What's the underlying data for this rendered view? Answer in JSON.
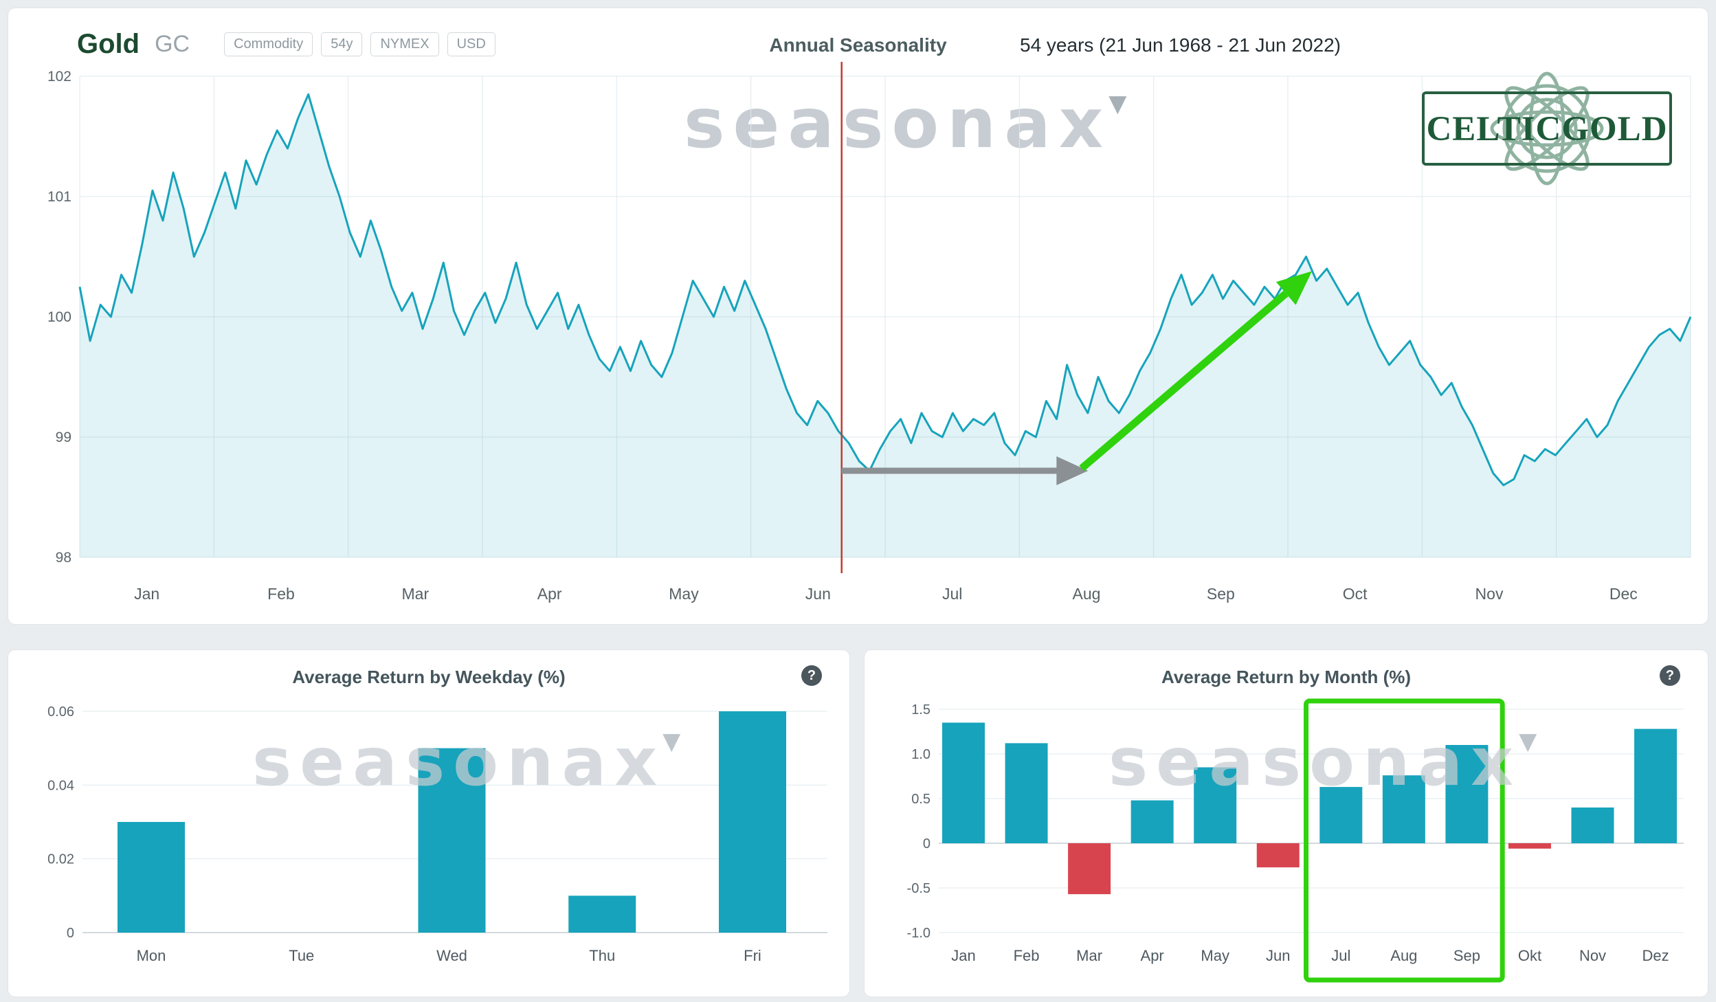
{
  "header": {
    "title": "Gold",
    "symbol": "GC",
    "badges": [
      "Commodity",
      "54y",
      "NYMEX",
      "USD"
    ],
    "range_text": "54 years (21 Jun 1968 - 21 Jun 2022)"
  },
  "ui": {
    "help_glyph": "?",
    "watermark_text": "seasonax"
  },
  "logo": {
    "text": "CELTICGOLD"
  },
  "colors": {
    "accent_teal": "#17a3bc",
    "negative_red": "#d8444e",
    "signal_green": "#2fd20d",
    "signal_gray": "#8b9094",
    "event_line_red": "#c23b2e",
    "grid": "#dfe9ee",
    "watermark": "#c7cdd2"
  },
  "chart_data": [
    {
      "type": "area",
      "title": "Annual Seasonality",
      "x_ticks": [
        "Jan",
        "Feb",
        "Mar",
        "Apr",
        "May",
        "Jun",
        "Jul",
        "Aug",
        "Sep",
        "Oct",
        "Nov",
        "Dec"
      ],
      "y_ticks": [
        "102",
        "101",
        "100",
        "99",
        "98"
      ],
      "ylim": [
        98,
        102.2
      ],
      "grid": true,
      "values": [
        100.25,
        99.8,
        100.1,
        100.0,
        100.35,
        100.2,
        100.6,
        101.05,
        100.8,
        101.2,
        100.9,
        100.5,
        100.7,
        100.95,
        101.2,
        100.9,
        101.3,
        101.1,
        101.35,
        101.55,
        101.4,
        101.65,
        101.85,
        101.55,
        101.25,
        101.0,
        100.7,
        100.5,
        100.8,
        100.55,
        100.25,
        100.05,
        100.2,
        99.9,
        100.15,
        100.45,
        100.05,
        99.85,
        100.05,
        100.2,
        99.95,
        100.15,
        100.45,
        100.1,
        99.9,
        100.05,
        100.2,
        99.9,
        100.1,
        99.85,
        99.65,
        99.55,
        99.75,
        99.55,
        99.8,
        99.6,
        99.5,
        99.7,
        100.0,
        100.3,
        100.15,
        100.0,
        100.25,
        100.05,
        100.3,
        100.1,
        99.9,
        99.65,
        99.4,
        99.2,
        99.1,
        99.3,
        99.2,
        99.05,
        98.95,
        98.8,
        98.72,
        98.9,
        99.05,
        99.15,
        98.95,
        99.2,
        99.05,
        99.0,
        99.2,
        99.05,
        99.15,
        99.1,
        99.2,
        98.95,
        98.85,
        99.05,
        99.0,
        99.3,
        99.15,
        99.6,
        99.35,
        99.2,
        99.5,
        99.3,
        99.2,
        99.35,
        99.55,
        99.7,
        99.9,
        100.15,
        100.35,
        100.1,
        100.2,
        100.35,
        100.15,
        100.3,
        100.2,
        100.1,
        100.25,
        100.15,
        100.3,
        100.35,
        100.5,
        100.3,
        100.4,
        100.25,
        100.1,
        100.2,
        99.95,
        99.75,
        99.6,
        99.7,
        99.8,
        99.6,
        99.5,
        99.35,
        99.45,
        99.25,
        99.1,
        98.9,
        98.7,
        98.6,
        98.65,
        98.85,
        98.8,
        98.9,
        98.85,
        98.95,
        99.05,
        99.15,
        99.0,
        99.1,
        99.3,
        99.45,
        99.6,
        99.75,
        99.85,
        99.9,
        99.8,
        100.0
      ],
      "annotations": {
        "event_vline_frac": 0.473,
        "gray_arrow": {
          "x1_frac": 0.473,
          "x2_frac": 0.626,
          "value": 98.72
        },
        "green_arrow": {
          "x1_frac": 0.622,
          "value1": 98.74,
          "x2_frac": 0.765,
          "value2": 100.38
        }
      }
    },
    {
      "type": "bar",
      "title": "Average Return by Weekday (%)",
      "categories": [
        "Mon",
        "Tue",
        "Wed",
        "Thu",
        "Fri"
      ],
      "values": [
        0.03,
        0,
        0.05,
        0.01,
        0.06
      ],
      "y_ticks": [
        "0.06",
        "0.04",
        "0.02",
        "0"
      ],
      "ylim": [
        0,
        0.065
      ]
    },
    {
      "type": "bar",
      "title": "Average Return by Month (%)",
      "categories": [
        "Jan",
        "Feb",
        "Mar",
        "Apr",
        "May",
        "Jun",
        "Jul",
        "Aug",
        "Sep",
        "Okt",
        "Nov",
        "Dez"
      ],
      "values": [
        1.35,
        1.12,
        -0.57,
        0.48,
        0.85,
        -0.27,
        0.63,
        0.76,
        1.1,
        -0.06,
        0.4,
        1.28
      ],
      "y_ticks": [
        "1.5",
        "1.0",
        "0.5",
        "0",
        "-0.5",
        "-1.0"
      ],
      "ylim": [
        -1.15,
        1.6
      ],
      "highlight_months": {
        "from": "Jul",
        "to": "Sep"
      }
    }
  ]
}
